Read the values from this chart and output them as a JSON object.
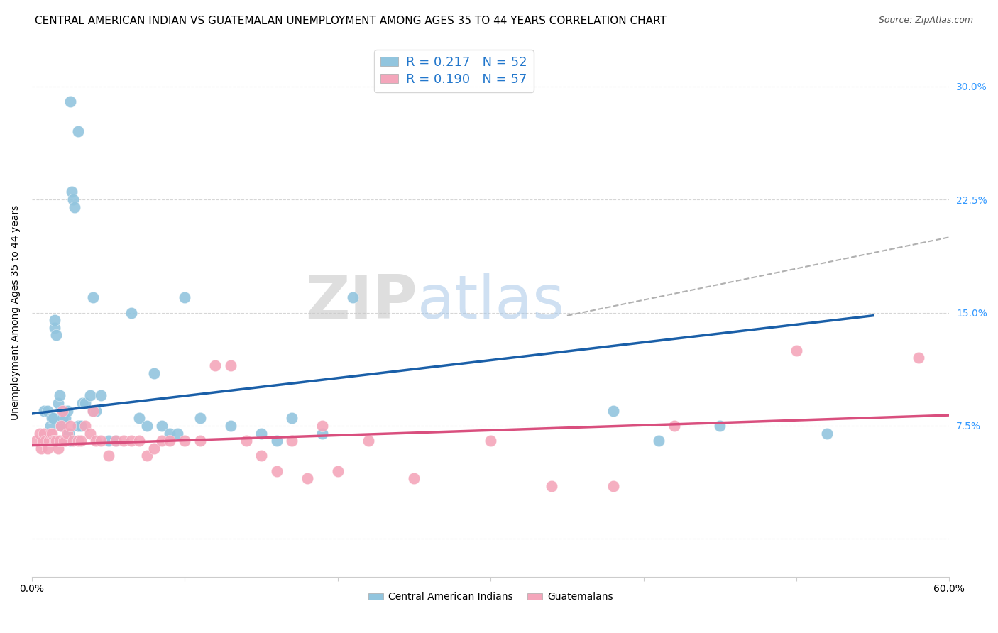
{
  "title": "CENTRAL AMERICAN INDIAN VS GUATEMALAN UNEMPLOYMENT AMONG AGES 35 TO 44 YEARS CORRELATION CHART",
  "source": "Source: ZipAtlas.com",
  "ylabel": "Unemployment Among Ages 35 to 44 years",
  "yticks": [
    0.0,
    0.075,
    0.15,
    0.225,
    0.3
  ],
  "ytick_labels": [
    "",
    "7.5%",
    "15.0%",
    "22.5%",
    "30.0%"
  ],
  "xmin": 0.0,
  "xmax": 0.6,
  "ymin": -0.025,
  "ymax": 0.325,
  "legend_r1": "R = 0.217",
  "legend_n1": "N = 52",
  "legend_r2": "R = 0.190",
  "legend_n2": "N = 57",
  "blue_color": "#92c5de",
  "pink_color": "#f4a6bb",
  "blue_line_color": "#1a5fa8",
  "pink_line_color": "#d94f7e",
  "dashed_line_color": "#b0b0b0",
  "blue_scatter_x": [
    0.008,
    0.01,
    0.012,
    0.013,
    0.014,
    0.015,
    0.015,
    0.016,
    0.017,
    0.018,
    0.019,
    0.02,
    0.021,
    0.022,
    0.023,
    0.024,
    0.025,
    0.026,
    0.027,
    0.028,
    0.03,
    0.032,
    0.033,
    0.035,
    0.038,
    0.04,
    0.042,
    0.045,
    0.05,
    0.055,
    0.07,
    0.075,
    0.08,
    0.085,
    0.09,
    0.095,
    0.1,
    0.11,
    0.13,
    0.15,
    0.16,
    0.19,
    0.21,
    0.025,
    0.03,
    0.04,
    0.065,
    0.17,
    0.38,
    0.41,
    0.45,
    0.52
  ],
  "blue_scatter_y": [
    0.085,
    0.085,
    0.075,
    0.08,
    0.08,
    0.14,
    0.145,
    0.135,
    0.09,
    0.095,
    0.075,
    0.08,
    0.085,
    0.08,
    0.085,
    0.07,
    0.065,
    0.23,
    0.225,
    0.22,
    0.075,
    0.075,
    0.09,
    0.09,
    0.095,
    0.085,
    0.085,
    0.095,
    0.065,
    0.065,
    0.08,
    0.075,
    0.11,
    0.075,
    0.07,
    0.07,
    0.16,
    0.08,
    0.075,
    0.07,
    0.065,
    0.07,
    0.16,
    0.29,
    0.27,
    0.16,
    0.15,
    0.08,
    0.085,
    0.065,
    0.075,
    0.07
  ],
  "pink_scatter_x": [
    0.003,
    0.005,
    0.006,
    0.007,
    0.008,
    0.009,
    0.01,
    0.011,
    0.012,
    0.013,
    0.014,
    0.015,
    0.016,
    0.017,
    0.018,
    0.019,
    0.02,
    0.021,
    0.022,
    0.023,
    0.025,
    0.027,
    0.03,
    0.032,
    0.035,
    0.038,
    0.04,
    0.042,
    0.045,
    0.05,
    0.055,
    0.06,
    0.065,
    0.07,
    0.075,
    0.08,
    0.085,
    0.09,
    0.1,
    0.11,
    0.12,
    0.13,
    0.14,
    0.15,
    0.16,
    0.17,
    0.18,
    0.19,
    0.2,
    0.22,
    0.25,
    0.3,
    0.34,
    0.38,
    0.42,
    0.5,
    0.58
  ],
  "pink_scatter_y": [
    0.065,
    0.07,
    0.06,
    0.065,
    0.07,
    0.065,
    0.06,
    0.065,
    0.07,
    0.07,
    0.065,
    0.065,
    0.065,
    0.06,
    0.065,
    0.075,
    0.085,
    0.065,
    0.065,
    0.07,
    0.075,
    0.065,
    0.065,
    0.065,
    0.075,
    0.07,
    0.085,
    0.065,
    0.065,
    0.055,
    0.065,
    0.065,
    0.065,
    0.065,
    0.055,
    0.06,
    0.065,
    0.065,
    0.065,
    0.065,
    0.115,
    0.115,
    0.065,
    0.055,
    0.045,
    0.065,
    0.04,
    0.075,
    0.045,
    0.065,
    0.04,
    0.065,
    0.035,
    0.035,
    0.075,
    0.125,
    0.12
  ],
  "blue_trend_x": [
    0.0,
    0.55
  ],
  "blue_trend_y": [
    0.083,
    0.148
  ],
  "pink_trend_x": [
    0.0,
    0.6
  ],
  "pink_trend_y": [
    0.062,
    0.082
  ],
  "dash_trend_x": [
    0.35,
    0.6
  ],
  "dash_trend_y": [
    0.148,
    0.2
  ],
  "grid_color": "#cccccc",
  "bg_color": "#ffffff",
  "title_fontsize": 11,
  "axis_fontsize": 10,
  "legend_fontsize": 13,
  "source_fontsize": 9,
  "label_bottom_1": "Central American Indians",
  "label_bottom_2": "Guatemalans"
}
